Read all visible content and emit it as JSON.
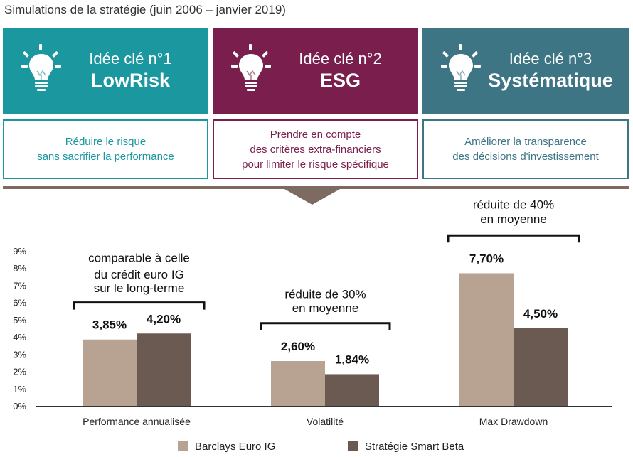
{
  "title": "Simulations de la stratégie (juin 2006 – janvier 2019)",
  "colors": {
    "teal": "#1b97a0",
    "plum": "#7a1f4d",
    "slate": "#3e7585",
    "barclays": "#b8a393",
    "smart_beta": "#6b5a52",
    "divider": "#7d6a60"
  },
  "ideas": [
    {
      "kicker": "Idée clé n°1",
      "name": "LowRisk",
      "icon": "lightbulb-icon",
      "desc": [
        "Réduire le risque",
        "sans sacrifier la performance"
      ]
    },
    {
      "kicker": "Idée clé n°2",
      "name": "ESG",
      "icon": "lightbulb-icon",
      "desc": [
        "Prendre en compte",
        "des critères extra-financiers",
        "pour limiter le risque spécifique"
      ]
    },
    {
      "kicker": "Idée clé n°3",
      "name": "Systématique",
      "icon": "lightbulb-icon",
      "desc": [
        "Améliorer la transparence",
        "des décisions d'investissement"
      ]
    }
  ],
  "chart_data": {
    "type": "bar",
    "categories": [
      "Performance annualisée",
      "Volatilité",
      "Max Drawdown"
    ],
    "series": [
      {
        "name": "Barclays Euro IG",
        "values": [
          3.85,
          2.6,
          7.7
        ],
        "labels": [
          "3,85%",
          "2,60%",
          "7,70%"
        ]
      },
      {
        "name": "Stratégie Smart Beta",
        "values": [
          4.2,
          1.84,
          4.5
        ],
        "labels": [
          "4,20%",
          "1,84%",
          "4,50%"
        ]
      }
    ],
    "ylim": [
      0,
      9
    ],
    "yticks": [
      "0%",
      "1%",
      "2%",
      "3%",
      "4%",
      "5%",
      "6%",
      "7%",
      "8%",
      "9%"
    ],
    "annotations": [
      [
        "comparable à celle",
        "du crédit euro IG",
        "sur le long-terme"
      ],
      [
        "réduite de 30%",
        "en moyenne"
      ],
      [
        "réduite de 40%",
        "en moyenne"
      ]
    ],
    "grid": false,
    "legend": "bottom-center"
  }
}
